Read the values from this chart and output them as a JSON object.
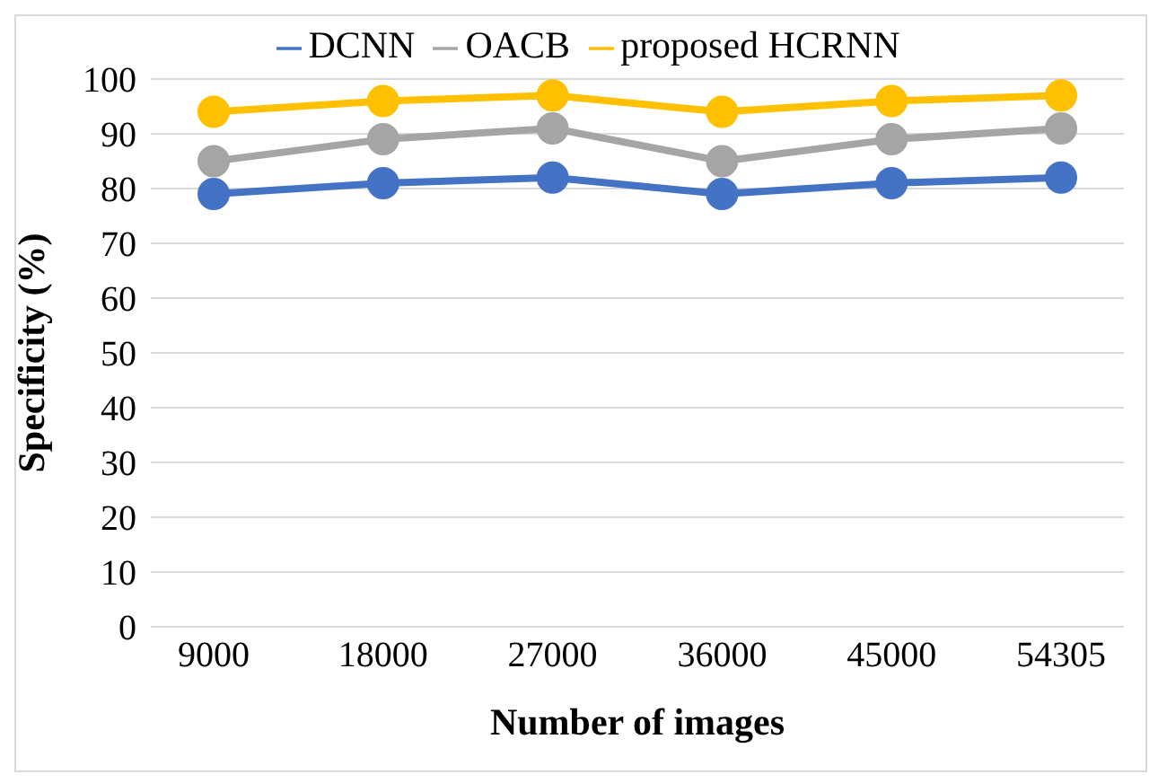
{
  "chart_data": {
    "type": "line",
    "xlabel": "Number of images",
    "ylabel": "Specificity (%)",
    "categories": [
      "9000",
      "18000",
      "27000",
      "36000",
      "45000",
      "54305"
    ],
    "series": [
      {
        "name": "DCNN",
        "color": "#4472c4",
        "values": [
          79,
          81,
          82,
          79,
          81,
          82
        ]
      },
      {
        "name": "OACB",
        "color": "#a5a5a5",
        "values": [
          85,
          89,
          91,
          85,
          89,
          91
        ]
      },
      {
        "name": "proposed HCRNN",
        "color": "#ffc000",
        "values": [
          94,
          96,
          97,
          94,
          96,
          97
        ]
      }
    ],
    "ylim": [
      0,
      100
    ],
    "yticks": [
      0,
      10,
      20,
      30,
      40,
      50,
      60,
      70,
      80,
      90,
      100
    ],
    "grid": "y",
    "legend": "top",
    "marker": "circle",
    "line_style": "solid"
  }
}
